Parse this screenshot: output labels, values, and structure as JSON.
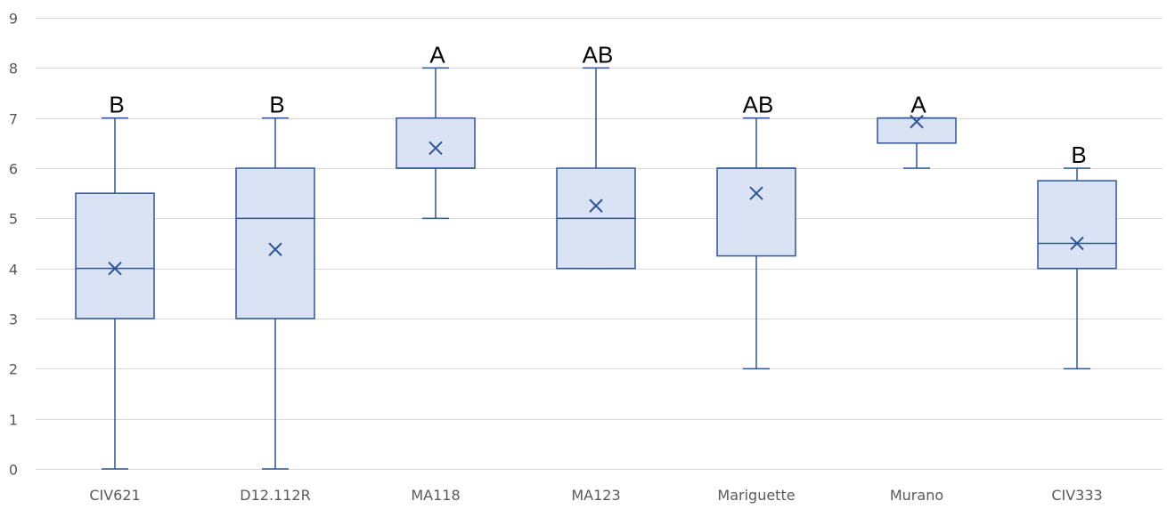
{
  "chart_data": {
    "type": "boxplot",
    "ylim": [
      0,
      9
    ],
    "yticks": [
      0,
      1,
      2,
      3,
      4,
      5,
      6,
      7,
      8,
      9
    ],
    "grid": true,
    "legend": "none",
    "colors": {
      "box_fill": "#dae3f3",
      "box_stroke": "#2f5597",
      "grid": "#d9d9d9",
      "tick_text": "#595959"
    },
    "categories": [
      "CIV621",
      "D12.112R",
      "MA118",
      "MA123",
      "Mariguette",
      "Murano",
      "CIV333"
    ],
    "boxes": [
      {
        "category": "CIV621",
        "min": 0,
        "q1": 3,
        "median": 4,
        "q3": 5.5,
        "max": 7,
        "mean": 4.0,
        "letter": "B"
      },
      {
        "category": "D12.112R",
        "min": 0,
        "q1": 3,
        "median": 5,
        "q3": 6,
        "max": 7,
        "mean": 4.38,
        "letter": "B"
      },
      {
        "category": "MA118",
        "min": 5,
        "q1": 6,
        "median": 6,
        "q3": 7,
        "max": 8,
        "mean": 6.4,
        "letter": "A"
      },
      {
        "category": "MA123",
        "min": 4,
        "q1": 4,
        "median": 5,
        "q3": 6,
        "max": 8,
        "mean": 5.25,
        "letter": "AB"
      },
      {
        "category": "Mariguette",
        "min": 2,
        "q1": 4.25,
        "median": 6,
        "q3": 6,
        "max": 7,
        "mean": 5.5,
        "letter": "AB"
      },
      {
        "category": "Murano",
        "min": 6,
        "q1": 6.5,
        "median": 7,
        "q3": 7,
        "max": 7,
        "mean": 6.93,
        "letter": "A"
      },
      {
        "category": "CIV333",
        "min": 2,
        "q1": 4,
        "median": 4.5,
        "q3": 5.75,
        "max": 6,
        "mean": 4.5,
        "letter": "B"
      }
    ]
  }
}
